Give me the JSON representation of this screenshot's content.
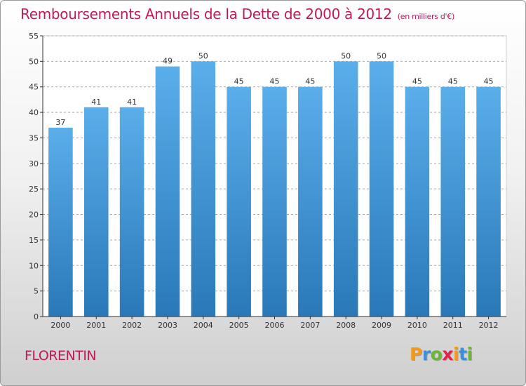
{
  "title": "Remboursements Annuels de la Dette de 2000 à 2012",
  "unit": "(en milliers d'€)",
  "commune": "FLORENTIN",
  "brand": {
    "text": "Proxiti",
    "letters": [
      {
        "ch": "P",
        "color": "#f39a1c"
      },
      {
        "ch": "r",
        "color": "#3e8fd8"
      },
      {
        "ch": "o",
        "color": "#6bb636"
      },
      {
        "ch": "x",
        "color": "#e5234a"
      },
      {
        "ch": "i",
        "color": "#f39a1c"
      },
      {
        "ch": "t",
        "color": "#3e8fd8"
      },
      {
        "ch": "i",
        "color": "#6bb636"
      }
    ]
  },
  "colors": {
    "title": "#c2195b",
    "bar_top": "#5aaeea",
    "bar_bottom": "#2a78b8",
    "grid": "#aaaaaa",
    "axis": "#333333"
  },
  "chart_data": {
    "type": "bar",
    "categories": [
      "2000",
      "2001",
      "2002",
      "2003",
      "2004",
      "2005",
      "2006",
      "2007",
      "2008",
      "2009",
      "2010",
      "2011",
      "2012"
    ],
    "values": [
      37,
      41,
      41,
      49,
      50,
      45,
      45,
      45,
      50,
      50,
      45,
      45,
      45
    ],
    "ylim": [
      0,
      55
    ],
    "yticks": [
      0,
      5,
      10,
      15,
      20,
      25,
      30,
      35,
      40,
      45,
      50,
      55
    ],
    "grid": true,
    "grid_style": "dashed horizontal"
  }
}
